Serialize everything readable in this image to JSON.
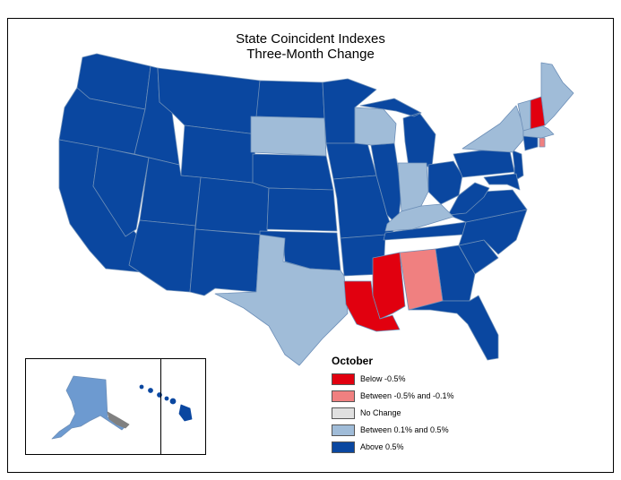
{
  "title_line1": "State Coincident Indexes",
  "title_line2": "Three-Month Change",
  "colors": {
    "below_neg_0_5": "#e1000f",
    "between_neg": "#f08080",
    "no_change": "#e0e0e0",
    "between_pos": "#a0bcd8",
    "above_0_5": "#0a47a0",
    "border": "#6d8fb8"
  },
  "legend": {
    "title": "October",
    "items": [
      {
        "label": "Below -0.5%",
        "color": "#e1000f"
      },
      {
        "label": "Between -0.5% and -0.1%",
        "color": "#f08080"
      },
      {
        "label": "No Change",
        "color": "#e0e0e0"
      },
      {
        "label": "Between 0.1% and 0.5%",
        "color": "#a0bcd8"
      },
      {
        "label": "Above 0.5%",
        "color": "#0a47a0"
      }
    ]
  },
  "state_categories": {
    "below_neg_0_5": [
      "Mississippi",
      "Louisiana",
      "New Hampshire"
    ],
    "between_neg_0_5_and_neg_0_1": [
      "Alabama",
      "Rhode Island"
    ],
    "between_0_1_and_0_5": [
      "South Dakota",
      "Texas",
      "Wisconsin",
      "Indiana",
      "Kentucky",
      "New York",
      "Vermont",
      "Maine",
      "Massachusetts",
      "Alaska"
    ],
    "above_0_5": [
      "Washington",
      "Oregon",
      "California",
      "Nevada",
      "Idaho",
      "Montana",
      "Wyoming",
      "Utah",
      "Arizona",
      "Colorado",
      "New Mexico",
      "North Dakota",
      "Nebraska",
      "Kansas",
      "Oklahoma",
      "Minnesota",
      "Iowa",
      "Missouri",
      "Arkansas",
      "Illinois",
      "Michigan",
      "Ohio",
      "Tennessee",
      "Georgia",
      "Florida",
      "South Carolina",
      "North Carolina",
      "Virginia",
      "West Virginia",
      "Pennsylvania",
      "New Jersey",
      "Delaware",
      "Maryland",
      "Connecticut",
      "Hawaii"
    ]
  }
}
